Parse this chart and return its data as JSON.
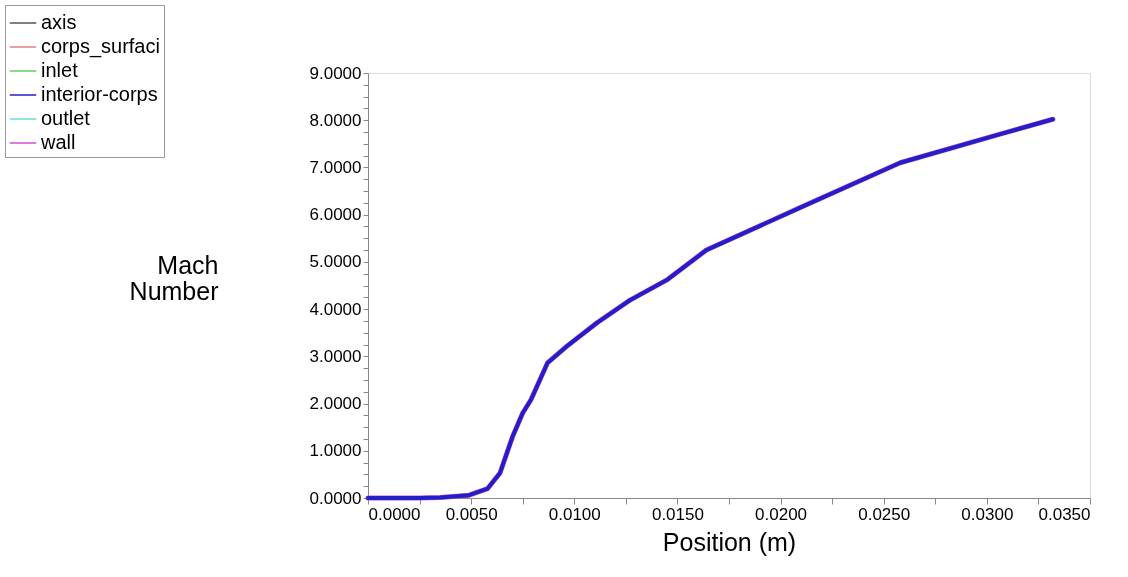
{
  "chart_data": {
    "type": "line",
    "xlabel": "Position (m)",
    "ylabel": "Mach Number",
    "x": [
      0,
      0.0025,
      0.0035,
      0.0049,
      0.0058,
      0.0064,
      0.007,
      0.0075,
      0.0079,
      0.0087,
      0.0096,
      0.0111,
      0.0127,
      0.0145,
      0.0164,
      0.0209,
      0.0258,
      0.0306,
      0.0332
    ],
    "series": [
      {
        "name": "axis",
        "color": "#555555",
        "values": [
          null,
          null,
          null,
          null,
          null,
          null,
          null,
          null,
          null,
          null,
          null,
          null,
          null,
          null,
          null,
          null,
          null,
          null,
          null
        ]
      },
      {
        "name": "corps_surfaci",
        "color": "#e08080",
        "values": [
          null,
          null,
          null,
          null,
          null,
          null,
          null,
          null,
          null,
          null,
          null,
          null,
          null,
          null,
          null,
          null,
          null,
          null,
          null
        ]
      },
      {
        "name": "inlet",
        "color": "#66cc66",
        "values": [
          null,
          null,
          null,
          null,
          null,
          null,
          null,
          null,
          null,
          null,
          null,
          null,
          null,
          null,
          null,
          null,
          null,
          null,
          null
        ]
      },
      {
        "name": "interior-corps",
        "color": "#2020c8",
        "values": [
          0,
          0,
          0.01,
          0.06,
          0.2,
          0.53,
          1.29,
          1.8,
          2.08,
          2.86,
          3.2,
          3.71,
          4.19,
          4.62,
          5.25,
          6.14,
          7.1,
          7.7,
          8.02
        ]
      },
      {
        "name": "outlet",
        "color": "#66dddd",
        "values": [
          null,
          null,
          null,
          null,
          null,
          null,
          null,
          null,
          null,
          null,
          null,
          null,
          null,
          null,
          null,
          null,
          null,
          null,
          null
        ]
      },
      {
        "name": "wall",
        "color": "#d050d0",
        "values": [
          0,
          0,
          0.01,
          0.06,
          0.2,
          0.53,
          1.29,
          1.8,
          2.08,
          2.86,
          3.2,
          3.71,
          4.19,
          4.62,
          5.25,
          6.14,
          7.1,
          7.7,
          8.02
        ]
      }
    ],
    "xlim": [
      0,
      0.035
    ],
    "xticks": [
      {
        "value": 0,
        "label": "0.0000"
      },
      {
        "value": 0.0025,
        "label": null
      },
      {
        "value": 0.005,
        "label": "0.0050"
      },
      {
        "value": 0.0075,
        "label": null
      },
      {
        "value": 0.01,
        "label": "0.0100"
      },
      {
        "value": 0.0125,
        "label": null
      },
      {
        "value": 0.015,
        "label": "0.0150"
      },
      {
        "value": 0.0175,
        "label": null
      },
      {
        "value": 0.02,
        "label": "0.0200"
      },
      {
        "value": 0.0225,
        "label": null
      },
      {
        "value": 0.025,
        "label": "0.0250"
      },
      {
        "value": 0.0275,
        "label": null
      },
      {
        "value": 0.03,
        "label": "0.0300"
      },
      {
        "value": 0.0325,
        "label": null
      },
      {
        "value": 0.035,
        "label": "0.0350"
      }
    ],
    "ylim": [
      0,
      9
    ],
    "yticks": [
      {
        "value": 0,
        "label": "0.0000"
      },
      {
        "value": 0.25,
        "label": null
      },
      {
        "value": 0.5,
        "label": null
      },
      {
        "value": 0.75,
        "label": null
      },
      {
        "value": 1,
        "label": "1.0000"
      },
      {
        "value": 1.25,
        "label": null
      },
      {
        "value": 1.5,
        "label": null
      },
      {
        "value": 1.75,
        "label": null
      },
      {
        "value": 2,
        "label": "2.0000"
      },
      {
        "value": 2.25,
        "label": null
      },
      {
        "value": 2.5,
        "label": null
      },
      {
        "value": 2.75,
        "label": null
      },
      {
        "value": 3,
        "label": "3.0000"
      },
      {
        "value": 3.25,
        "label": null
      },
      {
        "value": 3.5,
        "label": null
      },
      {
        "value": 3.75,
        "label": null
      },
      {
        "value": 4,
        "label": "4.0000"
      },
      {
        "value": 4.25,
        "label": null
      },
      {
        "value": 4.5,
        "label": null
      },
      {
        "value": 4.75,
        "label": null
      },
      {
        "value": 5,
        "label": "5.0000"
      },
      {
        "value": 5.25,
        "label": null
      },
      {
        "value": 5.5,
        "label": null
      },
      {
        "value": 5.75,
        "label": null
      },
      {
        "value": 6,
        "label": "6.0000"
      },
      {
        "value": 6.25,
        "label": null
      },
      {
        "value": 6.5,
        "label": null
      },
      {
        "value": 6.75,
        "label": null
      },
      {
        "value": 7,
        "label": "7.0000"
      },
      {
        "value": 7.25,
        "label": null
      },
      {
        "value": 7.5,
        "label": null
      },
      {
        "value": 7.75,
        "label": null
      },
      {
        "value": 8,
        "label": "8.0000"
      },
      {
        "value": 8.25,
        "label": null
      },
      {
        "value": 8.5,
        "label": null
      },
      {
        "value": 8.75,
        "label": null
      },
      {
        "value": 9,
        "label": "9.0000"
      }
    ],
    "grid": false,
    "legend": "top left",
    "marker": "none",
    "line_style": "solid"
  }
}
